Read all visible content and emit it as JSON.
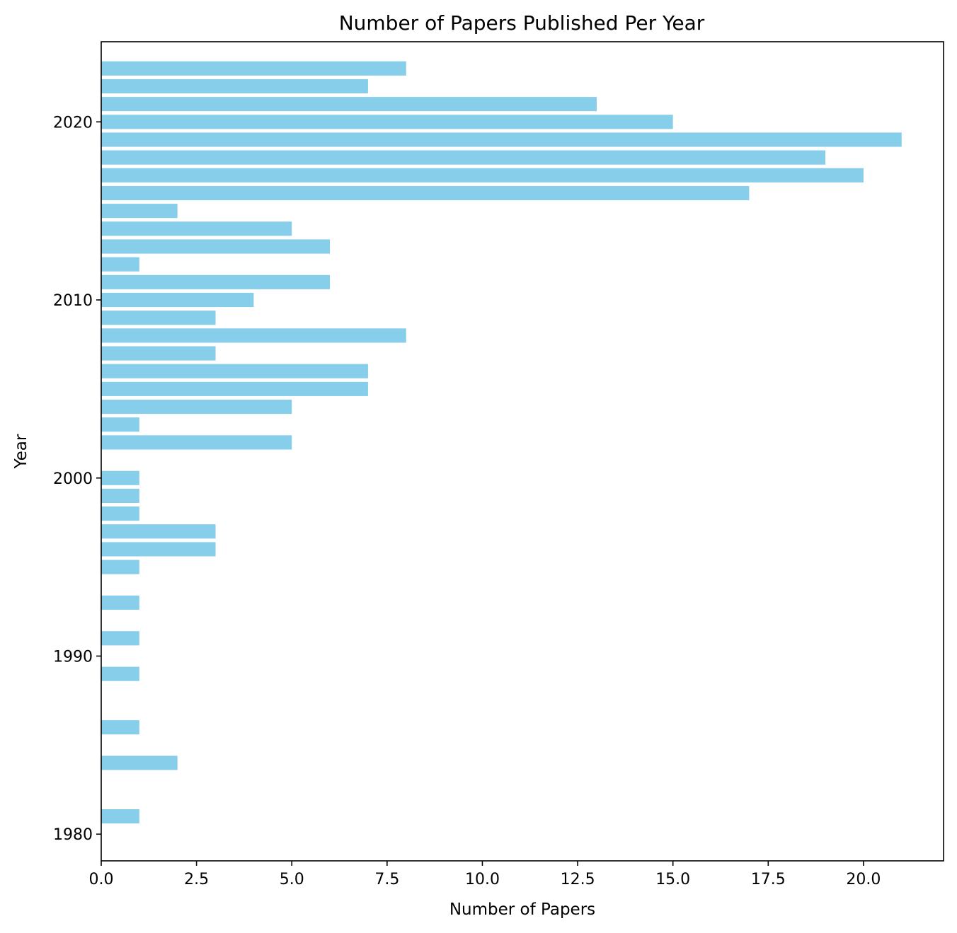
{
  "chart_data": {
    "type": "bar",
    "orientation": "horizontal",
    "title": "Number of Papers Published Per Year",
    "xlabel": "Number of Papers",
    "ylabel": "Year",
    "xlim": [
      0,
      22.1
    ],
    "ylim": [
      1978.5,
      2024.5
    ],
    "x_ticks": [
      "0.0",
      "2.5",
      "5.0",
      "7.5",
      "10.0",
      "12.5",
      "15.0",
      "17.5",
      "20.0"
    ],
    "y_ticks": [
      "1980",
      "1990",
      "2000",
      "2010",
      "2020"
    ],
    "bar_color": "#87ceeb",
    "grid": false,
    "bars": [
      {
        "year": 1981,
        "count": 1
      },
      {
        "year": 1984,
        "count": 2
      },
      {
        "year": 1986,
        "count": 1
      },
      {
        "year": 1989,
        "count": 1
      },
      {
        "year": 1991,
        "count": 1
      },
      {
        "year": 1993,
        "count": 1
      },
      {
        "year": 1995,
        "count": 1
      },
      {
        "year": 1996,
        "count": 3
      },
      {
        "year": 1997,
        "count": 3
      },
      {
        "year": 1998,
        "count": 1
      },
      {
        "year": 1999,
        "count": 1
      },
      {
        "year": 2000,
        "count": 1
      },
      {
        "year": 2002,
        "count": 5
      },
      {
        "year": 2003,
        "count": 1
      },
      {
        "year": 2004,
        "count": 5
      },
      {
        "year": 2005,
        "count": 7
      },
      {
        "year": 2006,
        "count": 7
      },
      {
        "year": 2007,
        "count": 3
      },
      {
        "year": 2008,
        "count": 8
      },
      {
        "year": 2009,
        "count": 3
      },
      {
        "year": 2010,
        "count": 4
      },
      {
        "year": 2011,
        "count": 6
      },
      {
        "year": 2012,
        "count": 1
      },
      {
        "year": 2013,
        "count": 6
      },
      {
        "year": 2014,
        "count": 5
      },
      {
        "year": 2015,
        "count": 2
      },
      {
        "year": 2016,
        "count": 17
      },
      {
        "year": 2017,
        "count": 20
      },
      {
        "year": 2018,
        "count": 19
      },
      {
        "year": 2019,
        "count": 21
      },
      {
        "year": 2020,
        "count": 15
      },
      {
        "year": 2021,
        "count": 13
      },
      {
        "year": 2022,
        "count": 7
      },
      {
        "year": 2023,
        "count": 8
      }
    ]
  }
}
